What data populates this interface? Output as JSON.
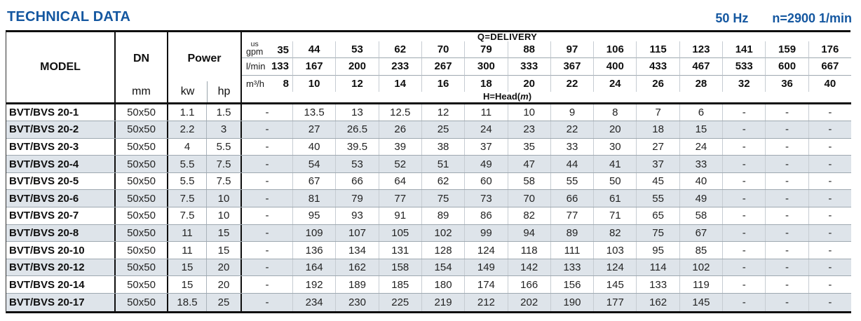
{
  "page": {
    "title": "TECHNICAL DATA",
    "frequency": "50 Hz",
    "speed": "n=2900 1/min"
  },
  "table": {
    "model_header": "MODEL",
    "dn_header": "DN",
    "dn_unit": "mm",
    "power_header": "Power",
    "power_unit_kw": "kw",
    "power_unit_hp": "hp",
    "delivery_title": "Q=DELIVERY",
    "head_title_prefix": "H=Head(",
    "head_title_unit": "m",
    "head_title_suffix": ")",
    "unit_row_labels": {
      "gpm_top": "us",
      "gpm": "gpm",
      "lmin": "l/min",
      "m3h": "m³/h"
    },
    "delivery_gpm": [
      "35",
      "44",
      "53",
      "62",
      "70",
      "79",
      "88",
      "97",
      "106",
      "115",
      "123",
      "141",
      "159",
      "176"
    ],
    "delivery_lmin": [
      "133",
      "167",
      "200",
      "233",
      "267",
      "300",
      "333",
      "367",
      "400",
      "433",
      "467",
      "533",
      "600",
      "667"
    ],
    "delivery_m3h": [
      "8",
      "10",
      "12",
      "14",
      "16",
      "18",
      "20",
      "22",
      "24",
      "26",
      "28",
      "32",
      "36",
      "40"
    ],
    "rows": [
      {
        "model": "BVT/BVS 20-1",
        "dn": "50x50",
        "kw": "1.1",
        "hp": "1.5",
        "head": [
          "-",
          "13.5",
          "13",
          "12.5",
          "12",
          "11",
          "10",
          "9",
          "8",
          "7",
          "6",
          "-",
          "-",
          "-"
        ]
      },
      {
        "model": "BVT/BVS 20-2",
        "dn": "50x50",
        "kw": "2.2",
        "hp": "3",
        "head": [
          "-",
          "27",
          "26.5",
          "26",
          "25",
          "24",
          "23",
          "22",
          "20",
          "18",
          "15",
          "-",
          "-",
          "-"
        ]
      },
      {
        "model": "BVT/BVS 20-3",
        "dn": "50x50",
        "kw": "4",
        "hp": "5.5",
        "head": [
          "-",
          "40",
          "39.5",
          "39",
          "38",
          "37",
          "35",
          "33",
          "30",
          "27",
          "24",
          "-",
          "-",
          "-"
        ]
      },
      {
        "model": "BVT/BVS 20-4",
        "dn": "50x50",
        "kw": "5.5",
        "hp": "7.5",
        "head": [
          "-",
          "54",
          "53",
          "52",
          "51",
          "49",
          "47",
          "44",
          "41",
          "37",
          "33",
          "-",
          "-",
          "-"
        ]
      },
      {
        "model": "BVT/BVS 20-5",
        "dn": "50x50",
        "kw": "5.5",
        "hp": "7.5",
        "head": [
          "-",
          "67",
          "66",
          "64",
          "62",
          "60",
          "58",
          "55",
          "50",
          "45",
          "40",
          "-",
          "-",
          "-"
        ]
      },
      {
        "model": "BVT/BVS 20-6",
        "dn": "50x50",
        "kw": "7.5",
        "hp": "10",
        "head": [
          "-",
          "81",
          "79",
          "77",
          "75",
          "73",
          "70",
          "66",
          "61",
          "55",
          "49",
          "-",
          "-",
          "-"
        ]
      },
      {
        "model": "BVT/BVS 20-7",
        "dn": "50x50",
        "kw": "7.5",
        "hp": "10",
        "head": [
          "-",
          "95",
          "93",
          "91",
          "89",
          "86",
          "82",
          "77",
          "71",
          "65",
          "58",
          "-",
          "-",
          "-"
        ]
      },
      {
        "model": "BVT/BVS 20-8",
        "dn": "50x50",
        "kw": "11",
        "hp": "15",
        "head": [
          "-",
          "109",
          "107",
          "105",
          "102",
          "99",
          "94",
          "89",
          "82",
          "75",
          "67",
          "-",
          "-",
          "-"
        ]
      },
      {
        "model": "BVT/BVS 20-10",
        "dn": "50x50",
        "kw": "11",
        "hp": "15",
        "head": [
          "-",
          "136",
          "134",
          "131",
          "128",
          "124",
          "118",
          "111",
          "103",
          "95",
          "85",
          "-",
          "-",
          "-"
        ]
      },
      {
        "model": "BVT/BVS 20-12",
        "dn": "50x50",
        "kw": "15",
        "hp": "20",
        "head": [
          "-",
          "164",
          "162",
          "158",
          "154",
          "149",
          "142",
          "133",
          "124",
          "114",
          "102",
          "-",
          "-",
          "-"
        ]
      },
      {
        "model": "BVT/BVS 20-14",
        "dn": "50x50",
        "kw": "15",
        "hp": "20",
        "head": [
          "-",
          "192",
          "189",
          "185",
          "180",
          "174",
          "166",
          "156",
          "145",
          "133",
          "119",
          "-",
          "-",
          "-"
        ]
      },
      {
        "model": "BVT/BVS 20-17",
        "dn": "50x50",
        "kw": "18.5",
        "hp": "25",
        "head": [
          "-",
          "234",
          "230",
          "225",
          "219",
          "212",
          "202",
          "190",
          "177",
          "162",
          "145",
          "-",
          "-",
          "-"
        ]
      }
    ]
  },
  "colors": {
    "accent_blue": "#1457a0",
    "row_shade": "#dee4ea",
    "grid_line": "#9ea8b0",
    "light_divider": "#c6ccd2",
    "border_black": "#0f0f0f"
  }
}
